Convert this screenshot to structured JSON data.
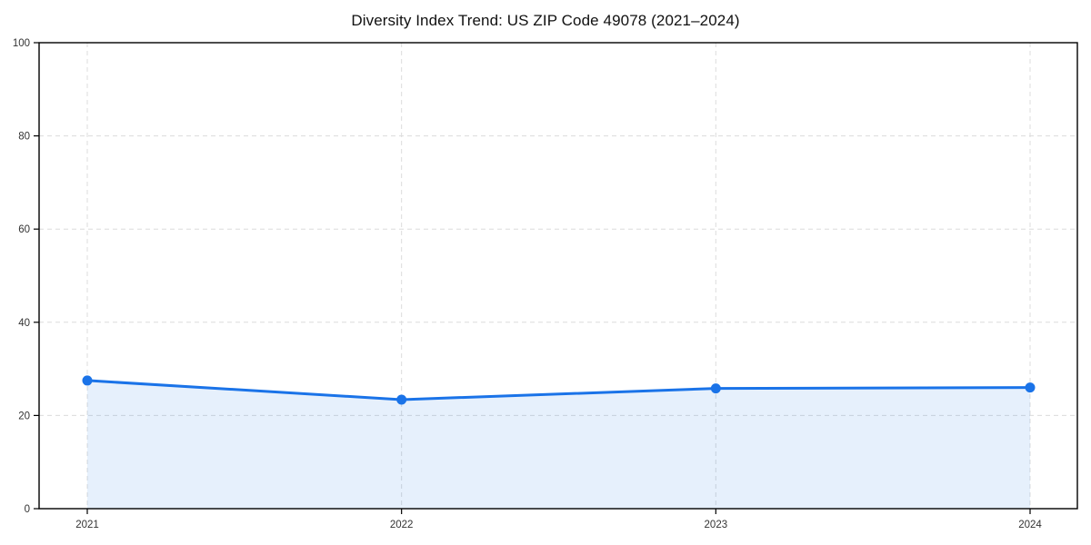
{
  "chart_data": {
    "type": "line",
    "title": "Diversity Index Trend: US ZIP Code 49078 (2021–2024)",
    "x": [
      "2021",
      "2022",
      "2023",
      "2024"
    ],
    "series": [
      {
        "name": "Diversity Index",
        "values": [
          27.5,
          23.4,
          25.8,
          26.0
        ]
      }
    ],
    "xlabel": "",
    "ylabel": "",
    "ylim": [
      0,
      100
    ],
    "yticks": [
      0,
      20,
      40,
      60,
      80,
      100
    ],
    "grid": "dashed-both-axes",
    "legend": "none",
    "area_fill": true,
    "line_color": "#1a73e8",
    "fill_color": "rgba(26,115,232,0.11)",
    "marker": "circle",
    "grid_color": "#dcdcdc",
    "axis_color": "#000000",
    "tick_label_color": "#333333",
    "background": "#ffffff"
  }
}
